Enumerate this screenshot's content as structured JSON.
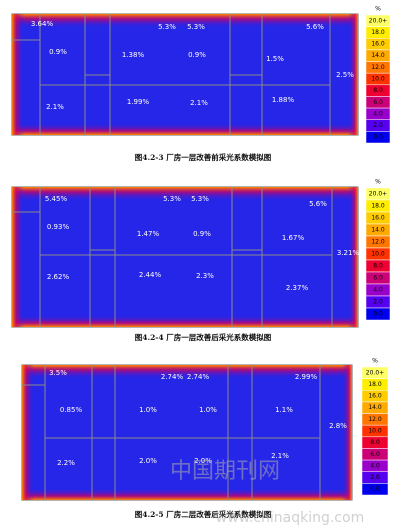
{
  "figures": [
    {
      "labels": [
        "3.64%",
        "0.9%",
        "5.3%",
        "5.3%",
        "5.6%",
        "1.38%",
        "0.9%",
        "1.5%",
        "2.5%",
        "2.1%",
        "1.99%",
        "2.1%",
        "1.88%"
      ],
      "legend": {
        "unit": "%",
        "ticks": [
          "20.0+",
          "18.0",
          "16.0",
          "14.0",
          "12.0",
          "10.0",
          "8.0",
          "6.0",
          "4.0",
          "2.0",
          "0.0"
        ]
      },
      "caption": "图4.2-3 厂房一层改善前采光系数模拟图"
    },
    {
      "labels": [
        "5.45%",
        "5.3%",
        "5.3%",
        "5.6%",
        "0.93%",
        "1.47%",
        "0.9%",
        "1.67%",
        "3.21%",
        "2.62%",
        "2.44%",
        "2.3%",
        "2.37%"
      ],
      "legend": {
        "unit": "%",
        "ticks": [
          "20.0+",
          "18.0",
          "16.0",
          "14.0",
          "12.0",
          "10.0",
          "8.0",
          "6.0",
          "4.0",
          "2.0",
          "0.0"
        ]
      },
      "caption": "图4.2-4 厂房一层改善后采光系数模拟图"
    },
    {
      "labels": [
        "3.5%",
        "2.74%",
        "2.74%",
        "2.99%",
        "0.85%",
        "1.0%",
        "1.0%",
        "1.1%",
        "2.8%",
        "2.2%",
        "2.0%",
        "2.0%",
        "2.1%"
      ],
      "legend": {
        "unit": "%",
        "ticks": [
          "20.0+",
          "18.0",
          "16.0",
          "14.0",
          "12.0",
          "10.0",
          "8.0",
          "6.0",
          "4.0",
          "2.0",
          "0.0"
        ]
      },
      "caption": "图4.2-5 厂房二层改善后采光系数模拟图"
    }
  ],
  "legend_colors": [
    "#ffff66",
    "#ffee00",
    "#ffcc00",
    "#ffaa00",
    "#ff7700",
    "#ff3300",
    "#ee0033",
    "#cc0077",
    "#9900cc",
    "#5500ee",
    "#0000ee"
  ],
  "watermark": {
    "title": "中国期刊网",
    "url": "www.chinaqking.com"
  }
}
